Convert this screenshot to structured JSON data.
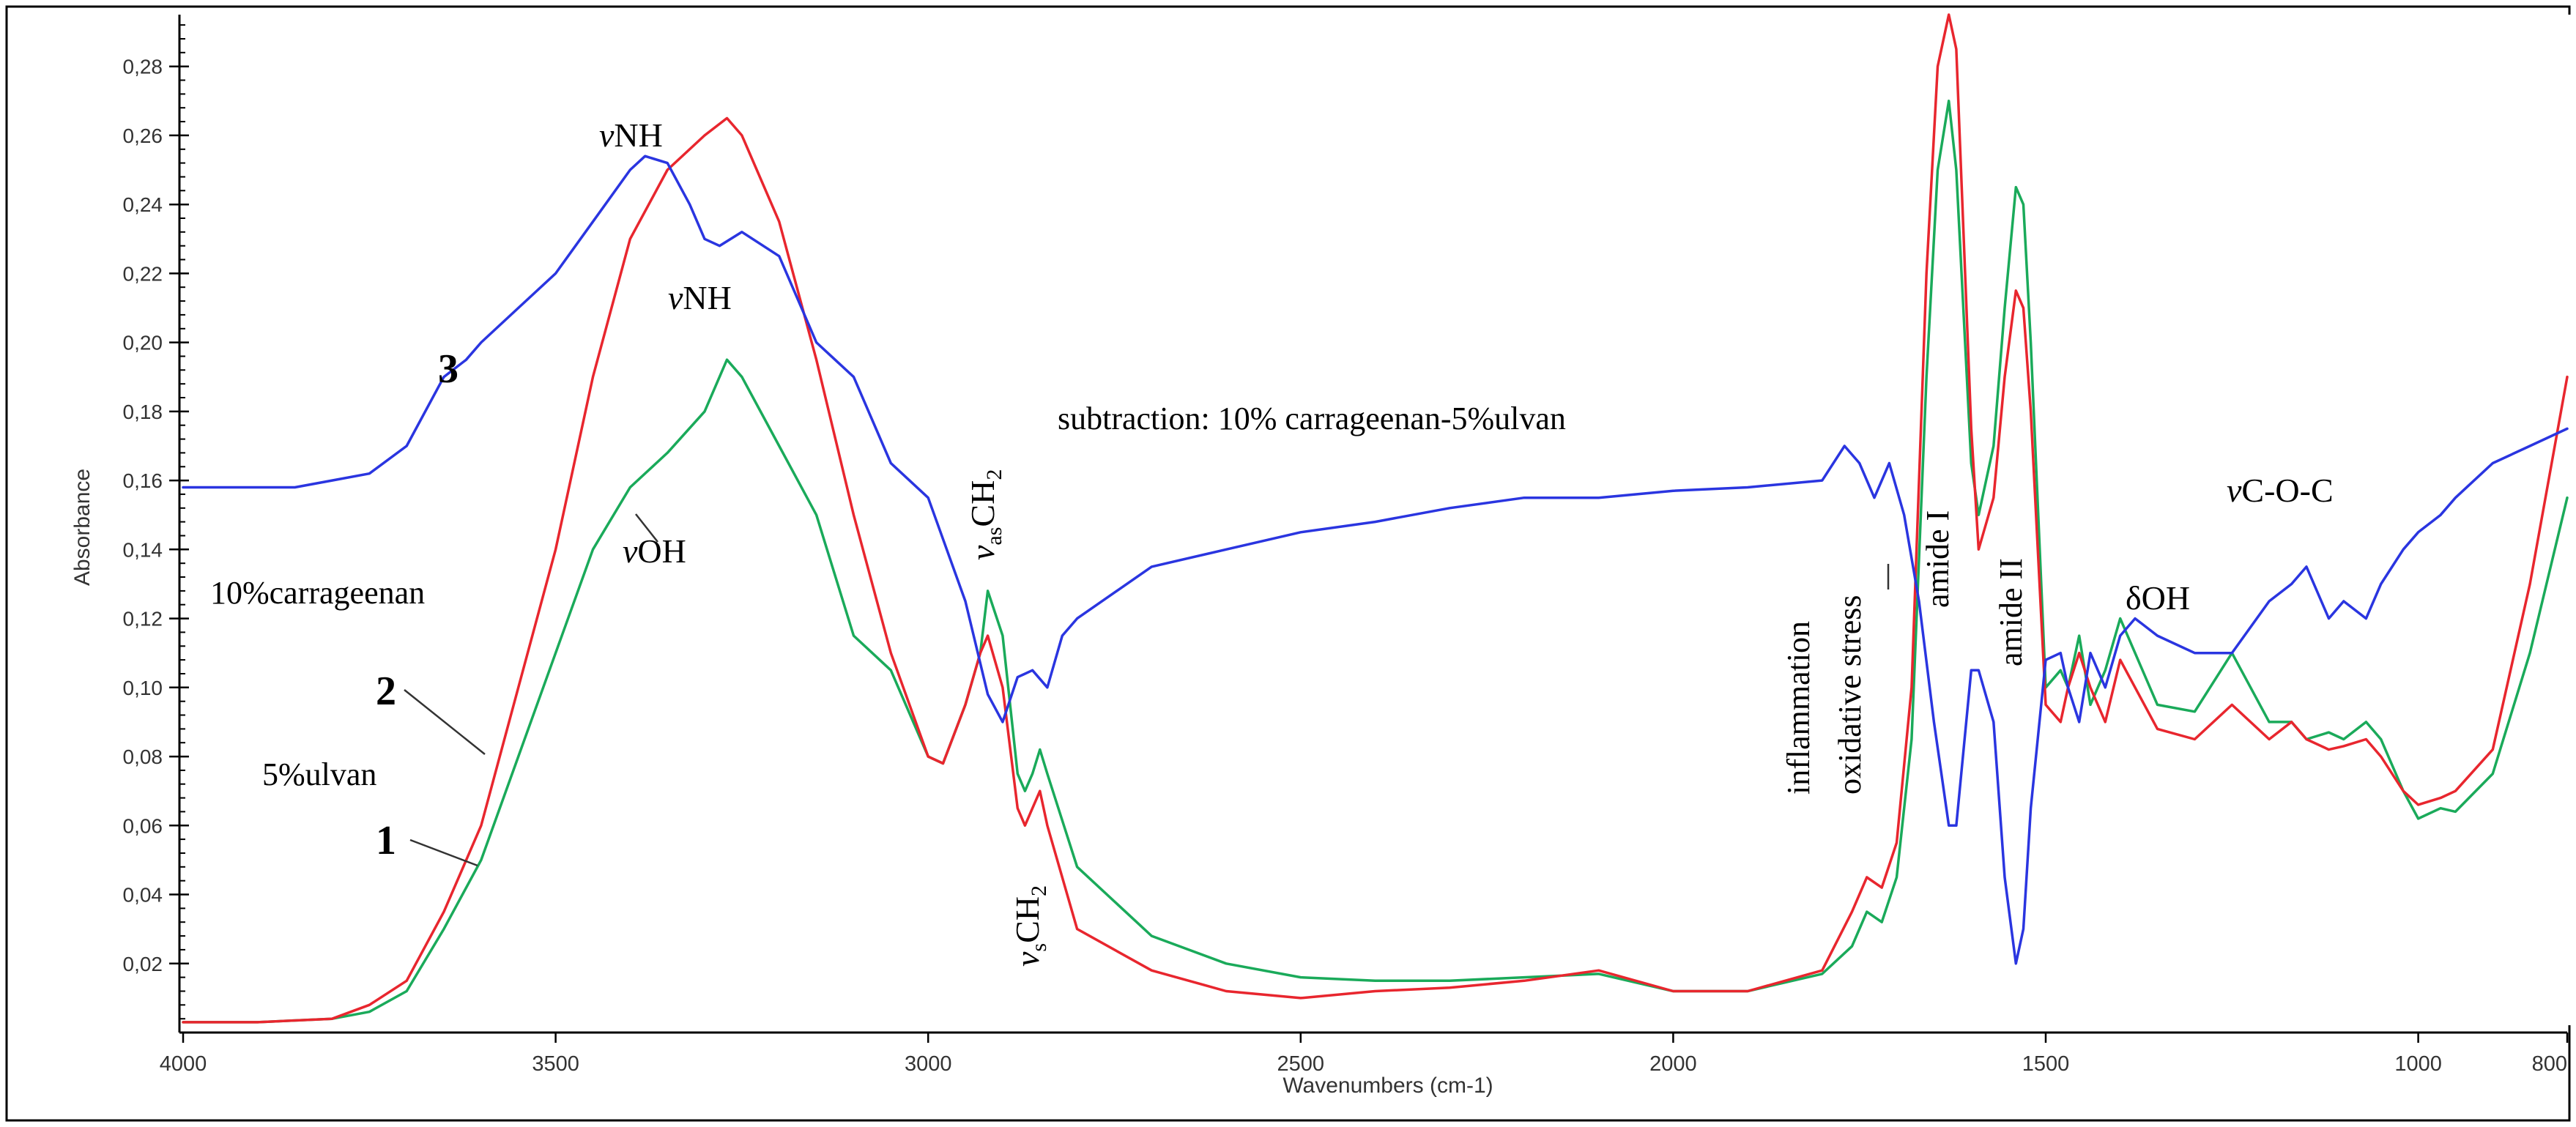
{
  "chart_data": {
    "type": "line",
    "title": "",
    "xlabel": "Wavenumbers (cm-1)",
    "ylabel": "Absorbance",
    "xlim": [
      4000,
      800
    ],
    "ylim": [
      0.0,
      0.295
    ],
    "x_reversed": true,
    "x_ticks": [
      {
        "value": 4000,
        "label": "4000"
      },
      {
        "value": 3500,
        "label": "3500"
      },
      {
        "value": 3000,
        "label": "3000"
      },
      {
        "value": 2500,
        "label": "2500"
      },
      {
        "value": 2000,
        "label": "2000"
      },
      {
        "value": 1500,
        "label": "1500"
      },
      {
        "value": 1000,
        "label": "1000"
      },
      {
        "value": 800,
        "label": "800"
      }
    ],
    "y_ticks": [
      {
        "value": 0.02,
        "label": "0,02"
      },
      {
        "value": 0.04,
        "label": "0,04"
      },
      {
        "value": 0.06,
        "label": "0,06"
      },
      {
        "value": 0.08,
        "label": "0,08"
      },
      {
        "value": 0.1,
        "label": "0,10"
      },
      {
        "value": 0.12,
        "label": "0,12"
      },
      {
        "value": 0.14,
        "label": "0,14"
      },
      {
        "value": 0.16,
        "label": "0,16"
      },
      {
        "value": 0.18,
        "label": "0,18"
      },
      {
        "value": 0.2,
        "label": "0,20"
      },
      {
        "value": 0.22,
        "label": "0,22"
      },
      {
        "value": 0.24,
        "label": "0,24"
      },
      {
        "value": 0.26,
        "label": "0,26"
      },
      {
        "value": 0.28,
        "label": "0,28"
      }
    ],
    "series": [
      {
        "name": "5%ulvan",
        "label": "1",
        "color": "#1aaa5a",
        "x": [
          4000,
          3900,
          3800,
          3750,
          3700,
          3650,
          3600,
          3550,
          3500,
          3450,
          3400,
          3350,
          3300,
          3270,
          3250,
          3200,
          3150,
          3100,
          3050,
          3000,
          2980,
          2950,
          2930,
          2920,
          2900,
          2880,
          2870,
          2860,
          2850,
          2840,
          2800,
          2700,
          2600,
          2500,
          2400,
          2300,
          2200,
          2100,
          2000,
          1900,
          1800,
          1760,
          1740,
          1720,
          1700,
          1680,
          1660,
          1645,
          1630,
          1620,
          1600,
          1590,
          1570,
          1555,
          1540,
          1530,
          1520,
          1500,
          1480,
          1470,
          1455,
          1440,
          1420,
          1400,
          1380,
          1350,
          1300,
          1250,
          1200,
          1170,
          1150,
          1120,
          1100,
          1070,
          1050,
          1020,
          1000,
          970,
          950,
          900,
          850,
          800
        ],
        "y": [
          0.003,
          0.003,
          0.004,
          0.006,
          0.012,
          0.03,
          0.05,
          0.08,
          0.11,
          0.14,
          0.158,
          0.168,
          0.18,
          0.195,
          0.19,
          0.17,
          0.15,
          0.115,
          0.105,
          0.08,
          0.078,
          0.095,
          0.11,
          0.128,
          0.115,
          0.075,
          0.07,
          0.075,
          0.082,
          0.075,
          0.048,
          0.028,
          0.02,
          0.016,
          0.015,
          0.015,
          0.016,
          0.017,
          0.012,
          0.012,
          0.017,
          0.025,
          0.035,
          0.032,
          0.045,
          0.085,
          0.19,
          0.25,
          0.27,
          0.25,
          0.165,
          0.15,
          0.17,
          0.21,
          0.245,
          0.24,
          0.2,
          0.1,
          0.105,
          0.1,
          0.115,
          0.095,
          0.105,
          0.12,
          0.11,
          0.095,
          0.093,
          0.11,
          0.09,
          0.09,
          0.085,
          0.087,
          0.085,
          0.09,
          0.085,
          0.07,
          0.062,
          0.065,
          0.064,
          0.075,
          0.11,
          0.155
        ]
      },
      {
        "name": "10%carrageenan",
        "label": "2",
        "color": "#e8262e",
        "x": [
          4000,
          3900,
          3800,
          3750,
          3700,
          3650,
          3600,
          3550,
          3500,
          3450,
          3400,
          3350,
          3300,
          3270,
          3250,
          3200,
          3150,
          3100,
          3050,
          3000,
          2980,
          2950,
          2930,
          2920,
          2900,
          2880,
          2870,
          2860,
          2850,
          2840,
          2800,
          2700,
          2600,
          2500,
          2400,
          2300,
          2200,
          2100,
          2000,
          1900,
          1800,
          1760,
          1740,
          1720,
          1700,
          1680,
          1660,
          1645,
          1630,
          1620,
          1600,
          1590,
          1570,
          1555,
          1540,
          1530,
          1520,
          1500,
          1480,
          1470,
          1455,
          1440,
          1420,
          1400,
          1380,
          1350,
          1300,
          1250,
          1200,
          1170,
          1150,
          1120,
          1100,
          1070,
          1050,
          1020,
          1000,
          970,
          950,
          900,
          850,
          800
        ],
        "y": [
          0.003,
          0.003,
          0.004,
          0.008,
          0.015,
          0.035,
          0.06,
          0.1,
          0.14,
          0.19,
          0.23,
          0.25,
          0.26,
          0.265,
          0.26,
          0.235,
          0.195,
          0.15,
          0.11,
          0.08,
          0.078,
          0.095,
          0.11,
          0.115,
          0.1,
          0.065,
          0.06,
          0.065,
          0.07,
          0.06,
          0.03,
          0.018,
          0.012,
          0.01,
          0.012,
          0.013,
          0.015,
          0.018,
          0.012,
          0.012,
          0.018,
          0.035,
          0.045,
          0.042,
          0.055,
          0.1,
          0.22,
          0.28,
          0.295,
          0.285,
          0.175,
          0.14,
          0.155,
          0.19,
          0.215,
          0.21,
          0.18,
          0.095,
          0.09,
          0.1,
          0.11,
          0.1,
          0.09,
          0.108,
          0.1,
          0.088,
          0.085,
          0.095,
          0.085,
          0.09,
          0.085,
          0.082,
          0.083,
          0.085,
          0.08,
          0.07,
          0.066,
          0.068,
          0.07,
          0.082,
          0.13,
          0.19
        ]
      },
      {
        "name": "subtraction: 10% carrageenan-5%ulvan",
        "label": "3",
        "color": "#2a35e0",
        "x": [
          4000,
          3950,
          3900,
          3850,
          3800,
          3750,
          3700,
          3650,
          3620,
          3600,
          3550,
          3500,
          3450,
          3400,
          3380,
          3350,
          3320,
          3300,
          3280,
          3250,
          3200,
          3150,
          3100,
          3050,
          3000,
          2950,
          2920,
          2900,
          2880,
          2860,
          2840,
          2820,
          2800,
          2700,
          2600,
          2500,
          2400,
          2300,
          2200,
          2100,
          2000,
          1900,
          1800,
          1770,
          1750,
          1730,
          1710,
          1690,
          1670,
          1650,
          1640,
          1630,
          1620,
          1600,
          1590,
          1570,
          1555,
          1540,
          1530,
          1520,
          1500,
          1480,
          1470,
          1455,
          1440,
          1420,
          1400,
          1380,
          1350,
          1300,
          1250,
          1200,
          1170,
          1150,
          1120,
          1100,
          1070,
          1050,
          1020,
          1000,
          970,
          950,
          900,
          850,
          800
        ],
        "y": [
          0.158,
          0.158,
          0.158,
          0.158,
          0.16,
          0.162,
          0.17,
          0.19,
          0.195,
          0.2,
          0.21,
          0.22,
          0.235,
          0.25,
          0.254,
          0.252,
          0.24,
          0.23,
          0.228,
          0.232,
          0.225,
          0.2,
          0.19,
          0.165,
          0.155,
          0.125,
          0.098,
          0.09,
          0.103,
          0.105,
          0.1,
          0.115,
          0.12,
          0.135,
          0.14,
          0.145,
          0.148,
          0.152,
          0.155,
          0.155,
          0.157,
          0.158,
          0.16,
          0.17,
          0.165,
          0.155,
          0.165,
          0.15,
          0.125,
          0.09,
          0.075,
          0.06,
          0.06,
          0.105,
          0.105,
          0.09,
          0.045,
          0.02,
          0.03,
          0.065,
          0.108,
          0.11,
          0.1,
          0.09,
          0.11,
          0.1,
          0.115,
          0.12,
          0.115,
          0.11,
          0.11,
          0.125,
          0.13,
          0.135,
          0.12,
          0.125,
          0.12,
          0.13,
          0.14,
          0.145,
          0.15,
          0.155,
          0.165,
          0.17,
          0.175
        ]
      }
    ],
    "annotations": {
      "label_3": "3",
      "label_2": "2",
      "label_1": "1",
      "carrageenan": "10%carrageenan",
      "ulvan": "5%ulvan",
      "subtraction": "subtraction: 10% carrageenan-5%ulvan",
      "nu_nh_top": "NH",
      "nu_nh_mid": "NH",
      "nu_oh": "OH",
      "nu_as_ch2_main": "CH",
      "nu_as_ch2_sub": "as",
      "nu_as_ch2_two": "2",
      "nu_s_ch2_main": "CH",
      "nu_s_ch2_sub": "s",
      "nu_s_ch2_two": "2",
      "inflammation": "inflammation",
      "oxidative_stress": "oxidative stress",
      "amide_i": "amide I",
      "amide_ii": "amide II",
      "delta_oh": "δOH",
      "nu_coc": "C-O-C",
      "nu_symbol": "ν"
    }
  }
}
